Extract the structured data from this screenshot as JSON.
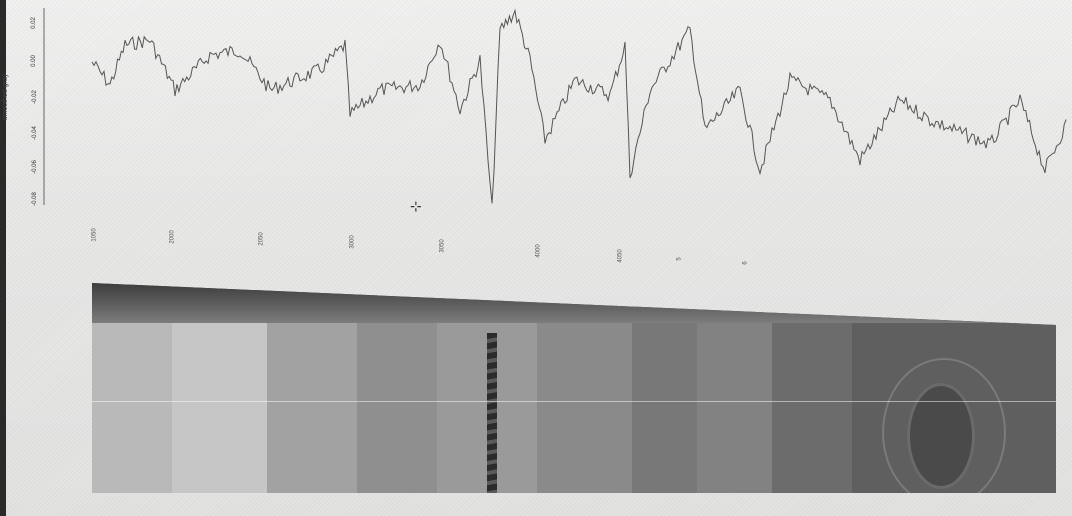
{
  "plot": {
    "y_axis_label": "smoothed gray",
    "y_ticks": [
      "0.02",
      "0.00",
      "-0.02",
      "-0.04",
      "-0.06",
      "-0.08"
    ],
    "x_ticks": [
      "1050",
      "2000",
      "2050",
      "3000",
      "3050",
      "4000",
      "4050",
      "5",
      "6"
    ],
    "line_color": "#555555"
  },
  "core_image": {
    "description_icon": "tree-ring-core-image"
  },
  "cursor_icon": "crosshair-cursor-icon"
}
